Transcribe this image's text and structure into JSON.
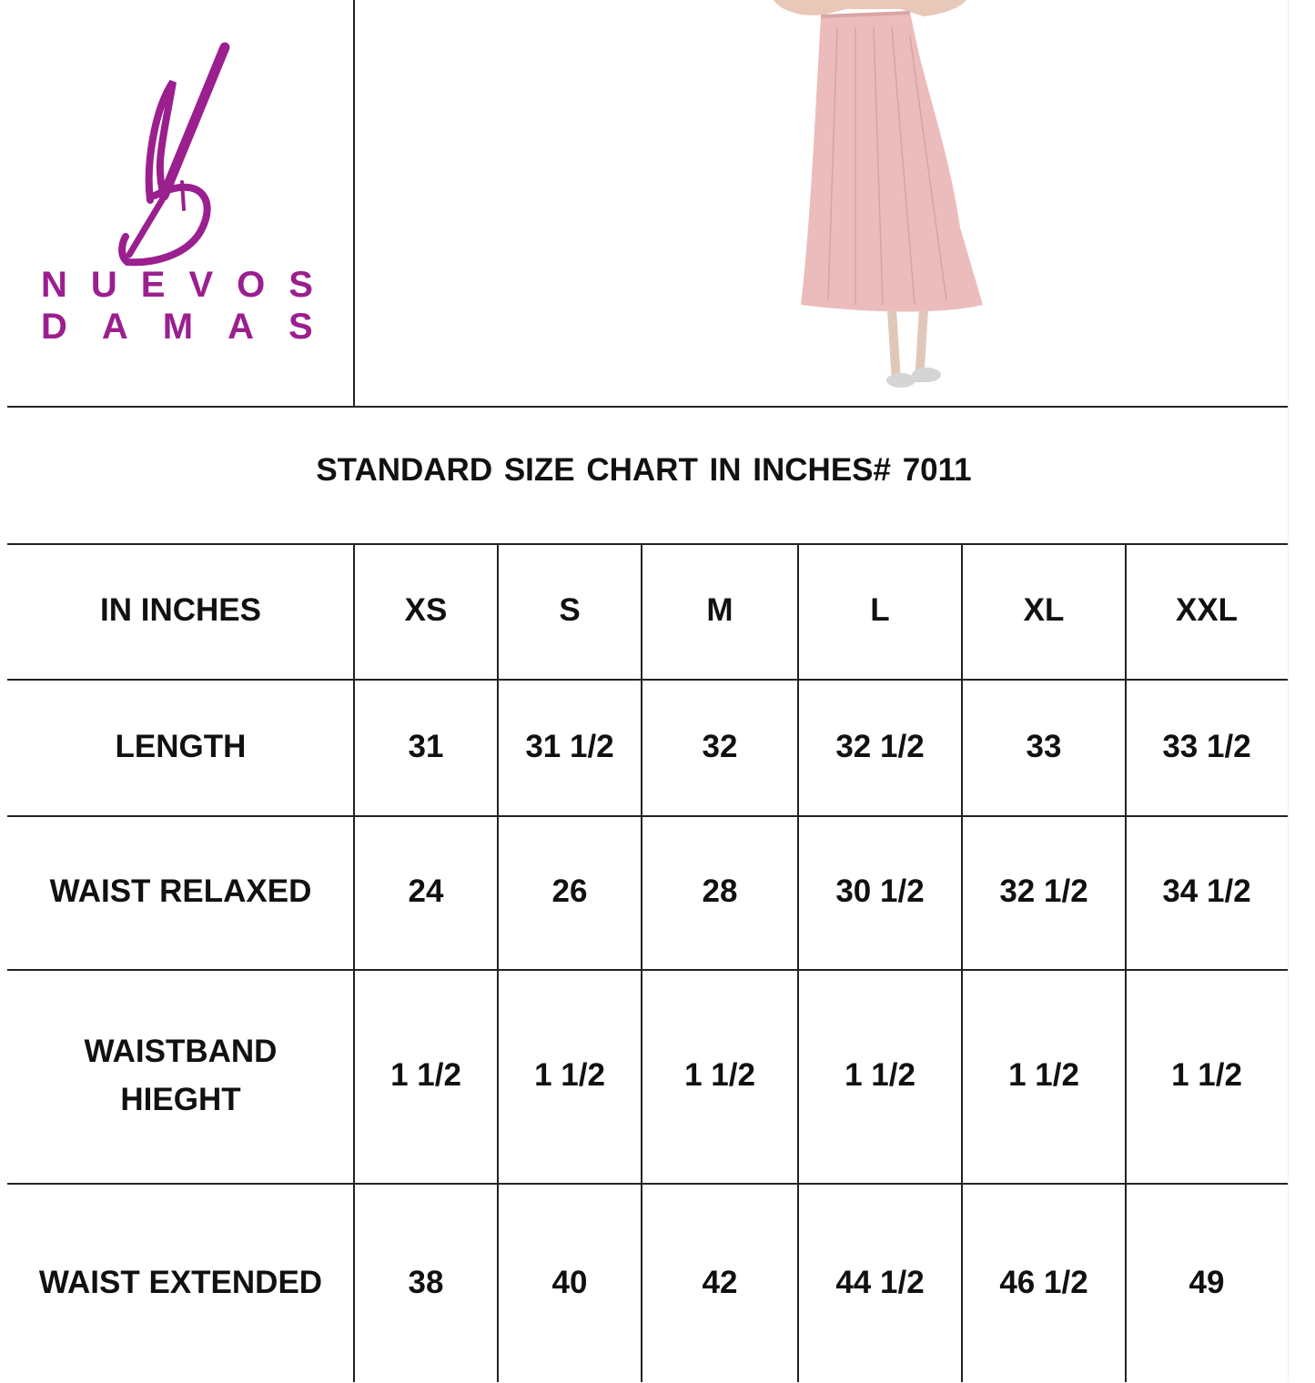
{
  "brand": {
    "logo_text_line1": "NUEVOS",
    "logo_text_line2": "DAMAS",
    "color": "#9b1f8f"
  },
  "product_image": {
    "description_icon": "pink-skirt-photo",
    "color": "#ecbcbc"
  },
  "title": "STANDARD  SIZE  CHART IN INCHES# 7011",
  "table": {
    "header": [
      "IN INCHES",
      "XS",
      "S",
      "M",
      "L",
      "XL",
      "XXL"
    ],
    "rows": [
      [
        "LENGTH",
        "31",
        "31 1/2",
        "32",
        "32 1/2",
        "33",
        "33 1/2"
      ],
      [
        "WAIST RELAXED",
        "24",
        "26",
        "28",
        "30 1/2",
        "32 1/2",
        "34 1/2"
      ],
      [
        "WAISTBAND HIEGHT",
        "1 1/2",
        "1 1/2",
        "1 1/2",
        "1 1/2",
        "1 1/2",
        "1 1/2"
      ],
      [
        "WAIST EXTENDED",
        "38",
        "40",
        "42",
        "44 1/2",
        "46 1/2",
        "49"
      ]
    ]
  }
}
